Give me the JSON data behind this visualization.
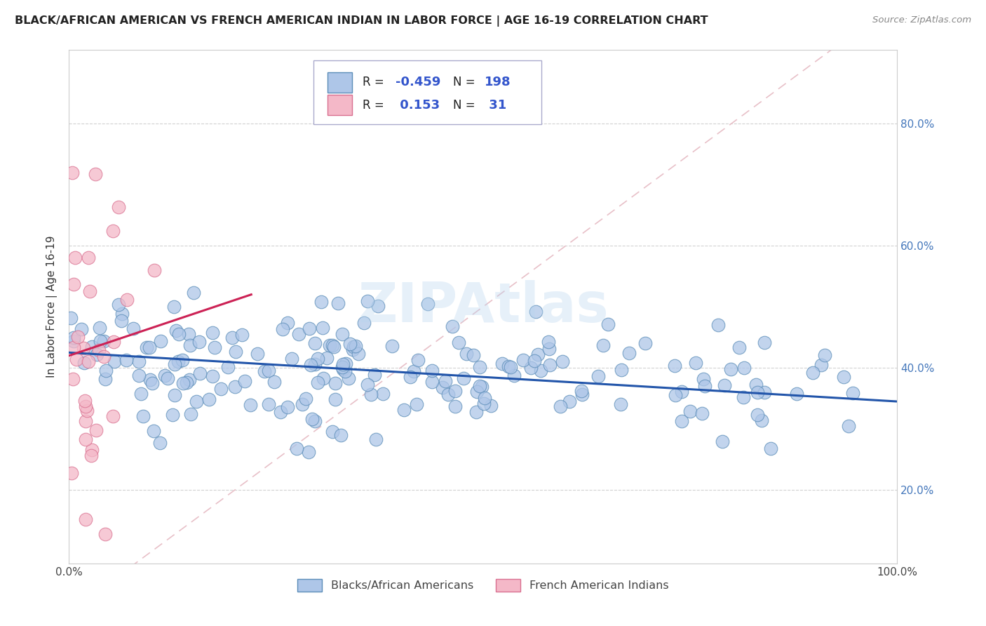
{
  "title": "BLACK/AFRICAN AMERICAN VS FRENCH AMERICAN INDIAN IN LABOR FORCE | AGE 16-19 CORRELATION CHART",
  "source": "Source: ZipAtlas.com",
  "ylabel": "In Labor Force | Age 16-19",
  "xlim": [
    0.0,
    1.0
  ],
  "ylim": [
    0.08,
    0.92
  ],
  "xtick_positions": [
    0.0,
    1.0
  ],
  "xtick_labels": [
    "0.0%",
    "100.0%"
  ],
  "ytick_positions": [
    0.2,
    0.4,
    0.6,
    0.8
  ],
  "ytick_labels": [
    "20.0%",
    "40.0%",
    "60.0%",
    "80.0%"
  ],
  "blue_face_color": "#aec6e8",
  "blue_edge_color": "#5b8db8",
  "pink_face_color": "#f4b8c8",
  "pink_edge_color": "#d97090",
  "blue_line_color": "#2255aa",
  "pink_line_color": "#cc2255",
  "diag_line_color": "#e8c0c8",
  "legend_label_blue": "Blacks/African Americans",
  "legend_label_pink": "French American Indians",
  "watermark": "ZIPAtlas",
  "blue_seed": 77,
  "pink_seed": 88,
  "blue_regression_x0": 0.0,
  "blue_regression_y0": 0.425,
  "blue_regression_x1": 1.0,
  "blue_regression_y1": 0.345,
  "pink_regression_x0": 0.0,
  "pink_regression_y0": 0.42,
  "pink_regression_x1": 0.22,
  "pink_regression_y1": 0.52
}
